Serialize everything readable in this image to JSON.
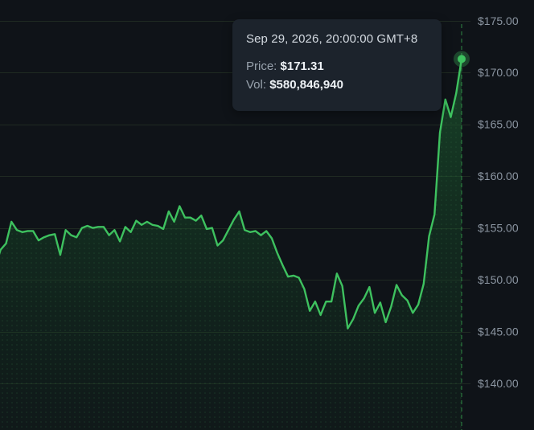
{
  "chart_data": {
    "type": "area",
    "ylim": [
      135.5,
      177
    ],
    "y_ticks": [
      140,
      145,
      150,
      155,
      160,
      165,
      170,
      175
    ],
    "y_tick_labels": [
      "$140.00",
      "$145.00",
      "$150.00",
      "$155.00",
      "$160.00",
      "$165.00",
      "$170.00",
      "$175.00"
    ],
    "series": [
      {
        "values": [
          151.2,
          152.9,
          153.5,
          155.6,
          154.8,
          154.6,
          154.7,
          154.7,
          153.8,
          154.1,
          154.3,
          154.4,
          152.4,
          154.8,
          154.3,
          154.1,
          155.0,
          155.2,
          155.0,
          155.1,
          155.1,
          154.3,
          154.8,
          153.7,
          155.1,
          154.6,
          155.7,
          155.3,
          155.6,
          155.3,
          155.2,
          154.9,
          156.6,
          155.6,
          157.1,
          156.0,
          156.0,
          155.7,
          156.2,
          154.9,
          155.0,
          153.3,
          153.8,
          154.8,
          155.8,
          156.6,
          154.8,
          154.6,
          154.7,
          154.3,
          154.7,
          154.0,
          152.6,
          151.4,
          150.3,
          150.4,
          150.2,
          149.1,
          147.0,
          147.9,
          146.6,
          147.9,
          147.9,
          150.6,
          149.4,
          145.3,
          146.2,
          147.5,
          148.2,
          149.3,
          146.8,
          147.8,
          145.9,
          147.4,
          149.5,
          148.5,
          148.0,
          146.8,
          147.6,
          149.6,
          154.2,
          156.3,
          164.2,
          167.4,
          165.7,
          168.0,
          171.31
        ]
      }
    ],
    "last_point_index": 86,
    "colors": {
      "line": "#3ec15f",
      "marker": "#3ec15f",
      "grid": "#1f2a22",
      "crosshair": "#2f8a45"
    }
  },
  "tooltip": {
    "date": "Sep 29, 2026, 20:00:00 GMT+8",
    "price_label": "Price:",
    "price_value": "$171.31",
    "vol_label": "Vol:",
    "vol_value": "$580,846,940"
  }
}
